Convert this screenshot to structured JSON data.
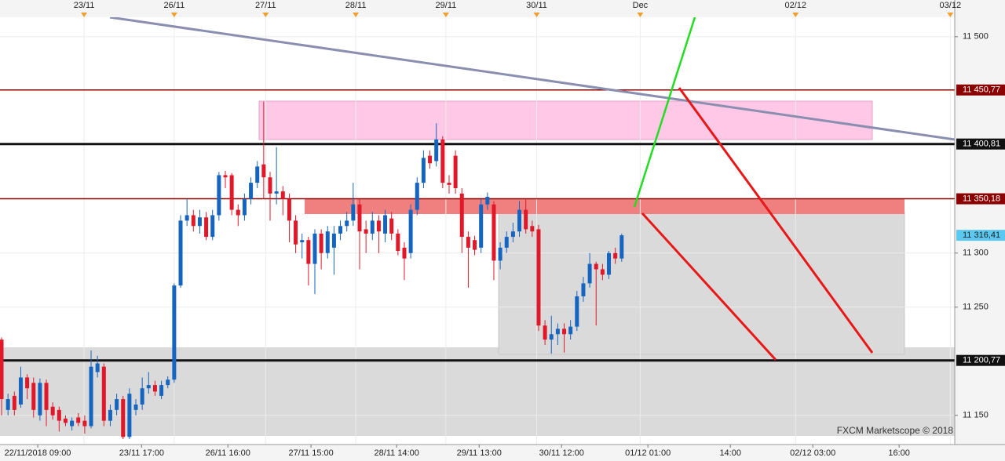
{
  "chart_data": {
    "type": "candlestick",
    "watermark": "FXCM Marketscope © 2018",
    "up_color": "#1565c0",
    "down_color": "#e0182a",
    "open": [
      11220,
      11155,
      11168,
      11160,
      11185,
      11180,
      11150,
      11180,
      11158,
      11155,
      11147,
      11140,
      11148,
      11145,
      11140,
      11190,
      11195,
      11145,
      11155,
      11165,
      11130,
      11155,
      11160,
      11175,
      11178,
      11168,
      11178,
      11183,
      11270,
      11330,
      11335,
      11325,
      11333,
      11315,
      11335,
      11372,
      11372,
      11340,
      11335,
      11350,
      11365,
      11382,
      11370,
      11355,
      11357,
      11350,
      11330,
      11310,
      11312,
      11290,
      11318,
      11300,
      11305,
      11318,
      11325,
      11330,
      11345,
      11322,
      11318,
      11330,
      11318,
      11332,
      11318,
      11305,
      11300,
      11340,
      11365,
      11390,
      11385,
      11405,
      11365,
      11390,
      11355,
      11315,
      11312,
      11305,
      11345,
      11345,
      11293,
      11305,
      11315,
      11320,
      11340,
      11325,
      11322,
      11233,
      11220,
      11225,
      11230,
      11225,
      11232,
      11260,
      11272,
      11290,
      11285,
      11280,
      11300,
      11295
    ],
    "high": [
      11222,
      11170,
      11172,
      11195,
      11188,
      11185,
      11184,
      11183,
      11162,
      11158,
      11150,
      11148,
      11152,
      11150,
      11210,
      11205,
      11198,
      11160,
      11170,
      11168,
      11175,
      11165,
      11185,
      11190,
      11182,
      11182,
      11186,
      11272,
      11335,
      11350,
      11340,
      11340,
      11338,
      11340,
      11375,
      11376,
      11374,
      11345,
      11355,
      11370,
      11385,
      11440,
      11375,
      11398,
      11362,
      11355,
      11335,
      11318,
      11315,
      11322,
      11322,
      11325,
      11325,
      11330,
      11338,
      11365,
      11350,
      11330,
      11338,
      11335,
      11340,
      11338,
      11322,
      11310,
      11345,
      11370,
      11395,
      11395,
      11420,
      11408,
      11372,
      11395,
      11360,
      11320,
      11316,
      11350,
      11356,
      11348,
      11310,
      11320,
      11328,
      11348,
      11350,
      11330,
      11326,
      11238,
      11242,
      11235,
      11235,
      11238,
      11265,
      11278,
      11300,
      11292,
      11290,
      11302,
      11305,
      11318
    ],
    "low": [
      11150,
      11150,
      11150,
      11157,
      11165,
      11148,
      11145,
      11140,
      11146,
      11135,
      11140,
      11136,
      11140,
      11133,
      11138,
      11185,
      11140,
      11140,
      11150,
      11128,
      11128,
      11150,
      11155,
      11170,
      11168,
      11165,
      11175,
      11180,
      11268,
      11325,
      11320,
      11318,
      11312,
      11312,
      11330,
      11360,
      11335,
      11325,
      11330,
      11345,
      11360,
      11350,
      11330,
      11345,
      11335,
      11310,
      11300,
      11295,
      11270,
      11262,
      11285,
      11295,
      11280,
      11312,
      11320,
      11325,
      11285,
      11300,
      11312,
      11300,
      11310,
      11312,
      11298,
      11275,
      11295,
      11335,
      11360,
      11378,
      11380,
      11360,
      11355,
      11355,
      11300,
      11268,
      11298,
      11300,
      11340,
      11275,
      11285,
      11300,
      11310,
      11315,
      11318,
      11315,
      11228,
      11215,
      11207,
      11215,
      11208,
      11220,
      11228,
      11255,
      11268,
      11233,
      11275,
      11276,
      11290,
      11292
    ],
    "close": [
      11165,
      11165,
      11155,
      11185,
      11175,
      11155,
      11180,
      11155,
      11150,
      11145,
      11143,
      11145,
      11143,
      11140,
      11195,
      11198,
      11145,
      11155,
      11165,
      11130,
      11170,
      11160,
      11175,
      11178,
      11172,
      11178,
      11183,
      11270,
      11330,
      11335,
      11325,
      11333,
      11315,
      11335,
      11372,
      11370,
      11340,
      11335,
      11350,
      11365,
      11380,
      11370,
      11355,
      11357,
      11350,
      11330,
      11308,
      11312,
      11290,
      11318,
      11300,
      11320,
      11318,
      11325,
      11330,
      11345,
      11320,
      11318,
      11330,
      11320,
      11335,
      11318,
      11302,
      11295,
      11340,
      11365,
      11388,
      11383,
      11405,
      11365,
      11363,
      11360,
      11315,
      11305,
      11303,
      11345,
      11352,
      11293,
      11305,
      11315,
      11320,
      11340,
      11322,
      11320,
      11233,
      11220,
      11225,
      11230,
      11225,
      11232,
      11260,
      11272,
      11290,
      11285,
      11280,
      11300,
      11295,
      11316.41
    ],
    "ylim": [
      11123,
      11518
    ],
    "yticks": [
      {
        "value": 11500,
        "label": "11 500"
      },
      {
        "value": 11300,
        "label": "11 300"
      },
      {
        "value": 11250,
        "label": "11 250"
      },
      {
        "value": 11150,
        "label": "11 150"
      }
    ],
    "xlim": [
      -0.25,
      149.1
    ],
    "xticks": [
      {
        "value": 5.65,
        "label": "22/11/2018 09:00"
      },
      {
        "value": 21.9,
        "label": "23/11 17:00"
      },
      {
        "value": 35.4,
        "label": "26/11 16:00"
      },
      {
        "value": 48.4,
        "label": "27/11 15:00"
      },
      {
        "value": 61.8,
        "label": "28/11 14:00"
      },
      {
        "value": 74.7,
        "label": "29/11 13:00"
      },
      {
        "value": 87.6,
        "label": "30/11 12:00"
      },
      {
        "value": 101.1,
        "label": "01/12 01:00"
      },
      {
        "value": 114.0,
        "label": "14:00"
      },
      {
        "value": 126.9,
        "label": "02/12 03:00"
      },
      {
        "value": 140.4,
        "label": "16:00"
      }
    ],
    "date_ticks": [
      {
        "value": 12.9,
        "label": "23/11"
      },
      {
        "value": 27.0,
        "label": "26/11"
      },
      {
        "value": 41.3,
        "label": "27/11"
      },
      {
        "value": 55.4,
        "label": "28/11"
      },
      {
        "value": 69.5,
        "label": "29/11"
      },
      {
        "value": 83.7,
        "label": "30/11"
      },
      {
        "value": 99.9,
        "label": "Dec"
      },
      {
        "value": 124.2,
        "label": "02/12"
      },
      {
        "value": 148.4,
        "label": "03/12"
      }
    ],
    "grid": true,
    "price_levels": [
      {
        "value": 11450.77,
        "label": "11 450,77",
        "color": "#8b0000",
        "width": 1.5
      },
      {
        "value": 11400.81,
        "label": "11 400,81",
        "color": "#111111",
        "width": 3
      },
      {
        "value": 11350.18,
        "label": "11 350,18",
        "color": "#8b0000",
        "width": 1.5
      },
      {
        "value": 11200.77,
        "label": "11 200,77",
        "color": "#111111",
        "width": 3
      }
    ],
    "last_price": {
      "value": 11316.41,
      "label": "11 316,41",
      "color": "#5bc8f0"
    }
  }
}
